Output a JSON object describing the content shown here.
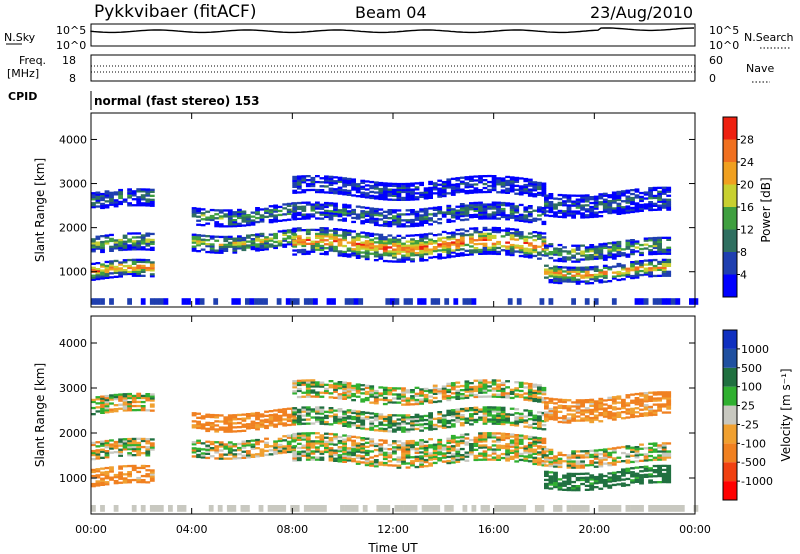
{
  "header": {
    "station": "Pykkvibaer (fitACF)",
    "beam": "Beam 04",
    "date": "23/Aug/2010"
  },
  "top_panels": {
    "nsky_label": "N.Sky",
    "nsky_ticks": [
      "10^5",
      "10^0"
    ],
    "nsearch_label": "N.Search",
    "nsearch_ticks": [
      "10^5",
      "10^0"
    ],
    "freq_label_1": "Freq.",
    "freq_label_2": "[MHz]",
    "freq_ticks": [
      "18",
      "8"
    ],
    "nave_label": "Nave",
    "nave_ticks": [
      "60",
      "0"
    ],
    "cpid_label": "CPID",
    "cpid_text": "normal (fast stereo) 153"
  },
  "colors": {
    "power_scale": [
      "#0000ff",
      "#1f3fb0",
      "#2f6f60",
      "#3f9f3f",
      "#c8d030",
      "#f0a020",
      "#f07020",
      "#ee2010"
    ],
    "velocity_scale": [
      "#ff0000",
      "#f04010",
      "#f08020",
      "#f0a030",
      "#c8c8c0",
      "#c8c8c0",
      "#30b030",
      "#207040",
      "#2050a0",
      "#1030c0"
    ]
  },
  "chart_data": [
    {
      "type": "heatmap",
      "name": "power",
      "x_ticks": [
        "00:00",
        "04:00",
        "08:00",
        "12:00",
        "16:00",
        "20:00",
        "00:00"
      ],
      "xlabel": "Time UT",
      "ylabel": "Slant Range [km]",
      "y_ticks": [
        1000,
        2000,
        3000,
        4000
      ],
      "ylim": [
        200,
        4600
      ],
      "xlim_hours": [
        0,
        24
      ],
      "colorbar": {
        "label": "Power [dB]",
        "ticks": [
          4,
          8,
          12,
          16,
          20,
          24,
          28
        ],
        "range": [
          0,
          32
        ]
      },
      "bands": [
        {
          "start": 0,
          "end": 2.5,
          "ranges": [
            [
              800,
              1200,
              0.8
            ],
            [
              1400,
              1800,
              0.5
            ],
            [
              2400,
              2800,
              0.3
            ]
          ]
        },
        {
          "start": 4,
          "end": 8,
          "ranges": [
            [
              1500,
              1900,
              0.6
            ],
            [
              2100,
              2500,
              0.4
            ]
          ]
        },
        {
          "start": 8,
          "end": 18,
          "ranges": [
            [
              1300,
              1900,
              0.85
            ],
            [
              2100,
              2500,
              0.3
            ],
            [
              2700,
              3100,
              0.2
            ]
          ]
        },
        {
          "start": 18,
          "end": 23,
          "ranges": [
            [
              800,
              1200,
              0.75
            ],
            [
              1300,
              1700,
              0.5
            ],
            [
              2300,
              2800,
              0.25
            ]
          ]
        }
      ]
    },
    {
      "type": "heatmap",
      "name": "velocity",
      "x_ticks": [
        "00:00",
        "04:00",
        "08:00",
        "12:00",
        "16:00",
        "20:00",
        "00:00"
      ],
      "xlabel": "Time UT",
      "ylabel": "Slant Range [km]",
      "y_ticks": [
        1000,
        2000,
        3000,
        4000
      ],
      "ylim": [
        200,
        4600
      ],
      "xlim_hours": [
        0,
        24
      ],
      "colorbar": {
        "label": "Velocity [m s⁻¹]",
        "ticks": [
          1000,
          500,
          100,
          25,
          -25,
          -100,
          -500,
          -1000
        ]
      },
      "bands": [
        {
          "start": 0,
          "end": 2.5,
          "ranges": [
            [
              800,
              1200,
              -150
            ],
            [
              1400,
              1800,
              0
            ],
            [
              2400,
              2800,
              0
            ]
          ]
        },
        {
          "start": 4,
          "end": 8,
          "ranges": [
            [
              1500,
              1900,
              0
            ],
            [
              2100,
              2500,
              -200
            ]
          ]
        },
        {
          "start": 8,
          "end": 18,
          "ranges": [
            [
              1300,
              1900,
              0
            ],
            [
              2100,
              2500,
              80
            ],
            [
              2700,
              3100,
              0
            ]
          ]
        },
        {
          "start": 18,
          "end": 23,
          "ranges": [
            [
              800,
              1200,
              200
            ],
            [
              1300,
              1700,
              0
            ],
            [
              2300,
              2800,
              -150
            ]
          ]
        }
      ]
    }
  ]
}
